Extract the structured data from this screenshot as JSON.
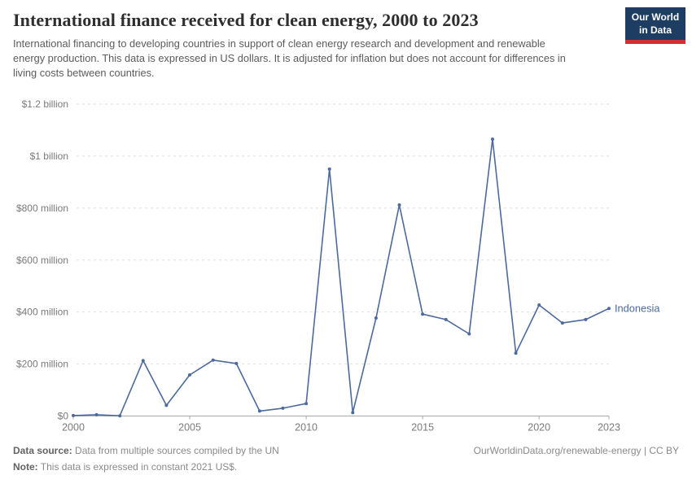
{
  "header": {
    "title": "International finance received for clean energy, 2000 to 2023",
    "subtitle": "International financing to developing countries in support of clean energy research and development and renewable energy production. This data is expressed in US dollars. It is adjusted for inflation but does not account for differences in living costs between countries.",
    "logo": {
      "line1": "Our World",
      "line2": "in Data",
      "bg_color": "#1d3d63",
      "accent_color": "#d2302c"
    }
  },
  "chart_data": {
    "type": "line",
    "title": "International finance received for clean energy, 2000 to 2023",
    "unit": "constant 2021 US$",
    "grid": "horizontal dashed",
    "legend_position": "end-of-line label",
    "xlim": [
      2000,
      2023
    ],
    "ylim": [
      0,
      1200
    ],
    "x": [
      2000,
      2001,
      2002,
      2003,
      2004,
      2005,
      2006,
      2007,
      2008,
      2009,
      2010,
      2011,
      2012,
      2013,
      2014,
      2015,
      2016,
      2017,
      2018,
      2019,
      2020,
      2021,
      2022,
      2023
    ],
    "series": [
      {
        "name": "Indonesia",
        "color": "#4c6a9c",
        "values_million_usd": [
          2,
          5,
          1,
          213,
          41,
          158,
          215,
          202,
          19,
          30,
          48,
          950,
          13,
          377,
          812,
          392,
          371,
          316,
          1065,
          242,
          427,
          358,
          371,
          414
        ]
      }
    ],
    "x_ticks": [
      "2000",
      "2005",
      "2010",
      "2015",
      "2020",
      "2023"
    ],
    "x_tick_years": [
      2000,
      2005,
      2010,
      2015,
      2020,
      2023
    ],
    "y_ticks": [
      {
        "value": 0,
        "label": "$0"
      },
      {
        "value": 200,
        "label": "$200 million"
      },
      {
        "value": 400,
        "label": "$400 million"
      },
      {
        "value": 600,
        "label": "$600 million"
      },
      {
        "value": 800,
        "label": "$800 million"
      },
      {
        "value": 1000,
        "label": "$1 billion"
      },
      {
        "value": 1200,
        "label": "$1.2 billion"
      }
    ],
    "colors": {
      "line": "#4c6a9c",
      "gridline": "#dedede",
      "axis": "#a8a8a8",
      "tick_label": "#7a7a7a"
    }
  },
  "footer": {
    "source_label": "Data source:",
    "source_text": " Data from multiple sources compiled by the UN",
    "note_label": "Note:",
    "note_text": " This data is expressed in constant 2021 US$.",
    "right_text": "OurWorldinData.org/renewable-energy | CC BY"
  }
}
